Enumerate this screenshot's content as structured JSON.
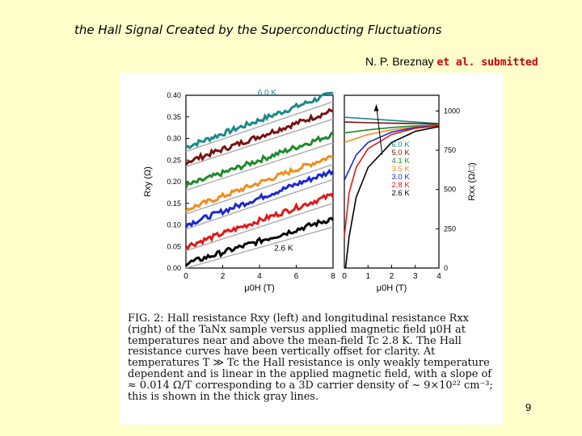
{
  "slide": {
    "title": "the Hall Signal  Created by the Superconducting Fluctuations",
    "author_prefix": "N. P. Breznay ",
    "author_suffix": "et al. submitted",
    "page_number": "9"
  },
  "caption": {
    "text": "FIG. 2:   Hall resistance Rxy (left) and longitudinal resistance Rxx (right) of the TaNx sample versus applied magnetic field μ0H at temperatures near and above the mean-field Tc 2.8 K. The Hall resistance curves have been vertically offset for clarity. At temperatures T ≫ Tc the Hall resistance is only weakly temperature dependent and is linear in the applied magnetic field, with a slope of ≈ 0.014 Ω/T corresponding to a 3D carrier density of ~ 9×10²² cm⁻³; this is shown in the thick gray lines."
  },
  "chart_data": [
    {
      "type": "scatter",
      "ylabel": "Rxy (Ω)",
      "xlabel": "μ0H (T)",
      "xlim": [
        0,
        8
      ],
      "ylim": [
        0,
        0.4
      ],
      "xticks": [
        "0",
        "2",
        "4",
        "6",
        "8"
      ],
      "yticks": [
        "0.00",
        "0.05",
        "0.10",
        "0.15",
        "0.20",
        "0.25",
        "0.30",
        "0.35",
        "0.40"
      ],
      "annotations": [
        "6.0 K",
        "2.6 K"
      ],
      "series": [
        {
          "name": "6.0 K",
          "color": "#1a8a8a",
          "x": [
            0,
            8
          ],
          "y": [
            0.28,
            0.405
          ]
        },
        {
          "name": "5.0 K",
          "color": "#7a1010",
          "x": [
            0,
            8
          ],
          "y": [
            0.245,
            0.365
          ]
        },
        {
          "name": "4.1 K",
          "color": "#1f8a2a",
          "x": [
            0,
            8
          ],
          "y": [
            0.19,
            0.31
          ]
        },
        {
          "name": "3.5 K",
          "color": "#f08c20",
          "x": [
            0,
            8
          ],
          "y": [
            0.135,
            0.26
          ]
        },
        {
          "name": "3.0 K",
          "color": "#1a2ad0",
          "x": [
            0,
            8
          ],
          "y": [
            0.1,
            0.225
          ]
        },
        {
          "name": "2.8 K",
          "color": "#e01818",
          "x": [
            0,
            8
          ],
          "y": [
            0.05,
            0.17
          ]
        },
        {
          "name": "2.6 K",
          "color": "#000000",
          "x": [
            0,
            8
          ],
          "y": [
            0.01,
            0.115
          ]
        }
      ]
    },
    {
      "type": "line",
      "ylabel": "Rxx (Ω/□)",
      "xlabel": "μ0H (T)",
      "xlim": [
        0,
        4
      ],
      "ylim": [
        0,
        1100
      ],
      "xticks": [
        "0",
        "1",
        "2",
        "3",
        "4"
      ],
      "yticks": [
        "0",
        "250",
        "500",
        "750",
        "1000"
      ],
      "legend": [
        "6.0 K",
        "5.0 K",
        "4.1 K",
        "3.5 K",
        "3.0 K",
        "2.8 K",
        "2.6 K"
      ],
      "series": [
        {
          "name": "6.0 K",
          "color": "#1a8a8a",
          "x": [
            0,
            1,
            2,
            3,
            4
          ],
          "y": [
            960,
            950,
            940,
            930,
            920
          ]
        },
        {
          "name": "5.0 K",
          "color": "#7a1010",
          "x": [
            0,
            1,
            2,
            3,
            4
          ],
          "y": [
            930,
            925,
            922,
            920,
            918
          ]
        },
        {
          "name": "4.1 K",
          "color": "#1f8a2a",
          "x": [
            0,
            1,
            2,
            3,
            4
          ],
          "y": [
            860,
            880,
            895,
            905,
            912
          ]
        },
        {
          "name": "3.5 K",
          "color": "#f08c20",
          "x": [
            0,
            1,
            2,
            3,
            4
          ],
          "y": [
            800,
            850,
            880,
            898,
            910
          ]
        },
        {
          "name": "3.0 K",
          "color": "#1a2ad0",
          "x": [
            0,
            0.5,
            1,
            2,
            3,
            4
          ],
          "y": [
            560,
            720,
            800,
            865,
            895,
            908
          ]
        },
        {
          "name": "2.8 K",
          "color": "#e01818",
          "x": [
            0,
            0.2,
            0.5,
            1,
            2,
            3,
            4
          ],
          "y": [
            200,
            480,
            640,
            760,
            850,
            890,
            905
          ]
        },
        {
          "name": "2.6 K",
          "color": "#000000",
          "x": [
            0.05,
            0.2,
            0.5,
            1,
            2,
            3,
            4
          ],
          "y": [
            0,
            200,
            450,
            640,
            800,
            870,
            900
          ]
        }
      ]
    }
  ]
}
